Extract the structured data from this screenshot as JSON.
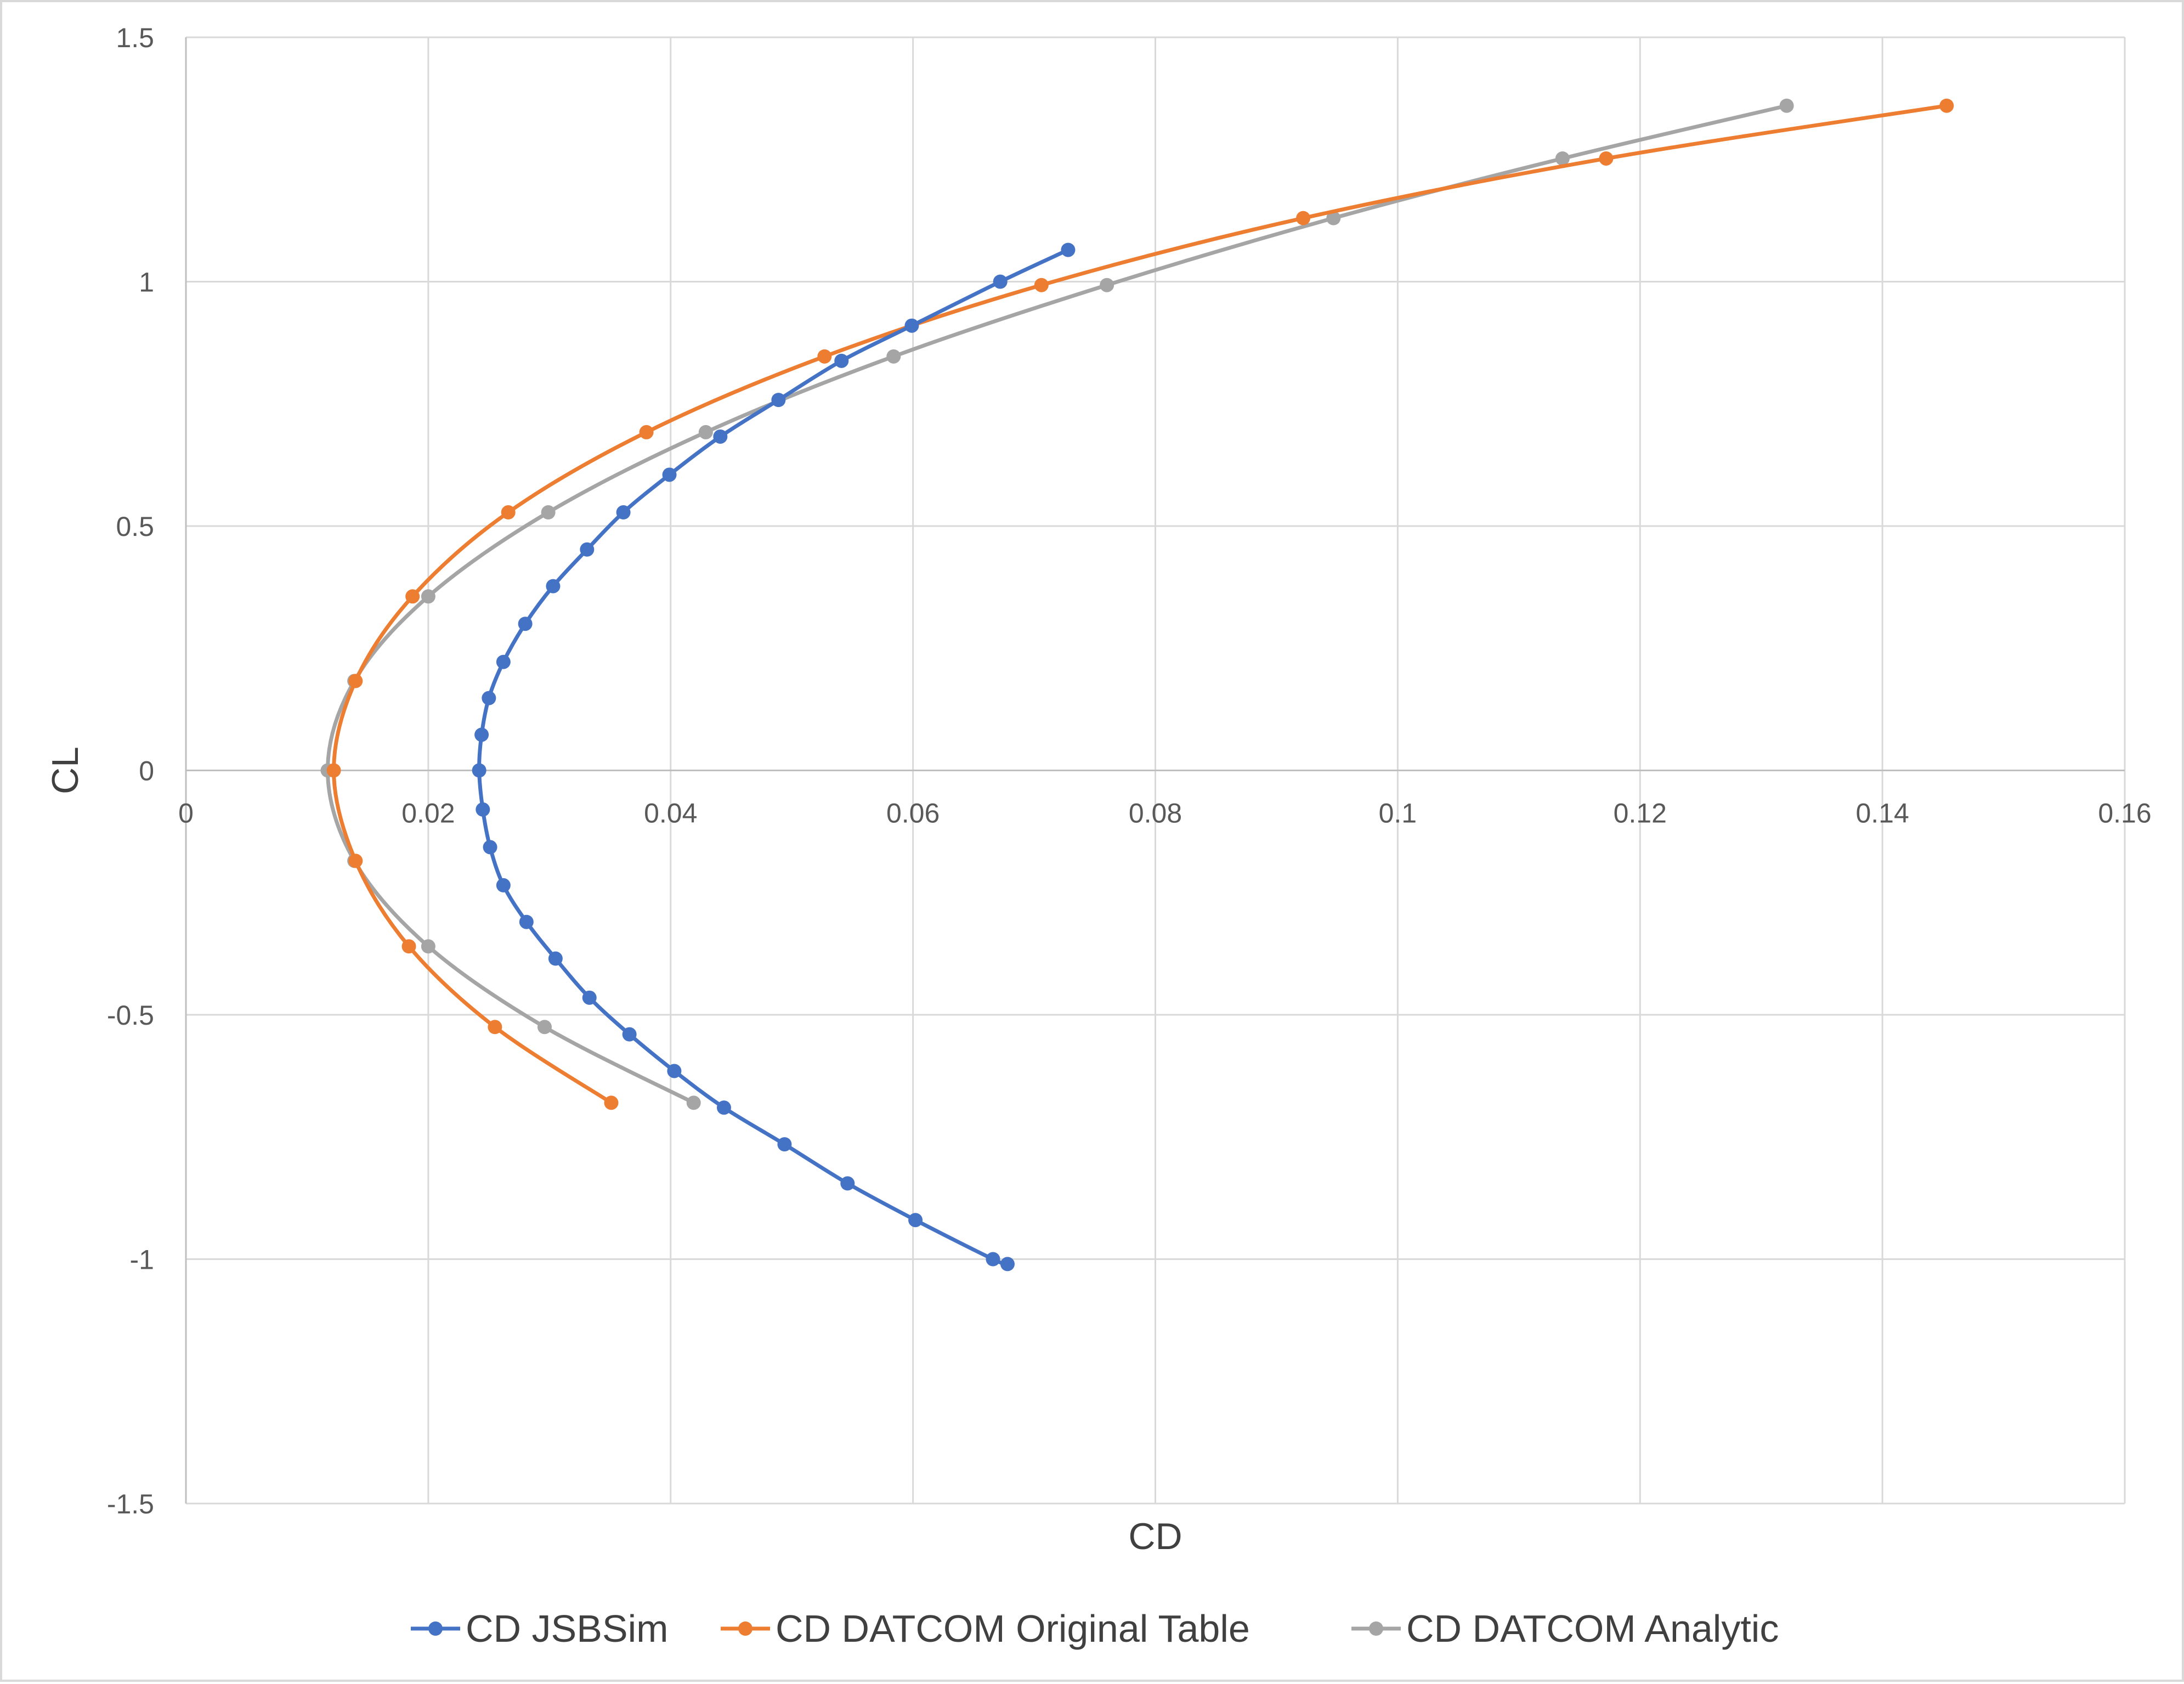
{
  "chart_data": {
    "type": "scatter",
    "title": "",
    "xlabel": "CD",
    "ylabel": "CL",
    "xlim": [
      0,
      0.16
    ],
    "ylim": [
      -1.5,
      1.5
    ],
    "x_ticks": [
      0,
      0.02,
      0.04,
      0.06,
      0.08,
      0.1,
      0.12,
      0.14,
      0.16
    ],
    "x_tick_labels": [
      "0",
      "0.02",
      "0.04",
      "0.06",
      "0.08",
      "0.1",
      "0.12",
      "0.14",
      "0.16"
    ],
    "y_ticks": [
      1.5,
      1,
      0.5,
      0,
      -0.5,
      -1,
      -1.5
    ],
    "y_tick_labels": [
      "1.5",
      "1",
      "0.5",
      "0",
      "-0.5",
      "-1",
      "-1.5"
    ],
    "grid": true,
    "legend_position": "bottom",
    "series": [
      {
        "name": "CD JSBSim",
        "color": "#4472c4",
        "points": [
          [
            0.0678,
            -1.01
          ],
          [
            0.0666,
            -1.0
          ],
          [
            0.0602,
            -0.92
          ],
          [
            0.0546,
            -0.845
          ],
          [
            0.0494,
            -0.765
          ],
          [
            0.0444,
            -0.69
          ],
          [
            0.0403,
            -0.615
          ],
          [
            0.0366,
            -0.54
          ],
          [
            0.0333,
            -0.465
          ],
          [
            0.0305,
            -0.385
          ],
          [
            0.0281,
            -0.31
          ],
          [
            0.0262,
            -0.235
          ],
          [
            0.0251,
            -0.157
          ],
          [
            0.0245,
            -0.08
          ],
          [
            0.0242,
            0.0
          ],
          [
            0.0244,
            0.073
          ],
          [
            0.025,
            0.148
          ],
          [
            0.0262,
            0.222
          ],
          [
            0.028,
            0.3
          ],
          [
            0.0303,
            0.377
          ],
          [
            0.0331,
            0.452
          ],
          [
            0.0361,
            0.528
          ],
          [
            0.0399,
            0.605
          ],
          [
            0.0441,
            0.683
          ],
          [
            0.0489,
            0.758
          ],
          [
            0.0541,
            0.838
          ],
          [
            0.0599,
            0.91
          ],
          [
            0.0672,
            1.0
          ],
          [
            0.0728,
            1.065
          ]
        ]
      },
      {
        "name": "CD DATCOM Original Table",
        "color": "#ed7d31",
        "points": [
          [
            0.0351,
            -0.68
          ],
          [
            0.0255,
            -0.525
          ],
          [
            0.0184,
            -0.36
          ],
          [
            0.014,
            -0.185
          ],
          [
            0.0122,
            0.0
          ],
          [
            0.014,
            0.183
          ],
          [
            0.0187,
            0.356
          ],
          [
            0.0266,
            0.528
          ],
          [
            0.038,
            0.692
          ],
          [
            0.0527,
            0.847
          ],
          [
            0.0706,
            0.993
          ],
          [
            0.0922,
            1.13
          ],
          [
            0.1172,
            1.252
          ],
          [
            0.1453,
            1.36
          ]
        ]
      },
      {
        "name": "CD DATCOM Analytic",
        "color": "#a5a5a5",
        "points": [
          [
            0.0419,
            -0.68
          ],
          [
            0.0296,
            -0.525
          ],
          [
            0.02,
            -0.36
          ],
          [
            0.0139,
            -0.185
          ],
          [
            0.0117,
            0.0
          ],
          [
            0.0139,
            0.183
          ],
          [
            0.02,
            0.356
          ],
          [
            0.0299,
            0.528
          ],
          [
            0.0429,
            0.692
          ],
          [
            0.0584,
            0.847
          ],
          [
            0.076,
            0.993
          ],
          [
            0.0947,
            1.13
          ],
          [
            0.1136,
            1.252
          ],
          [
            0.1321,
            1.36
          ]
        ]
      }
    ]
  }
}
